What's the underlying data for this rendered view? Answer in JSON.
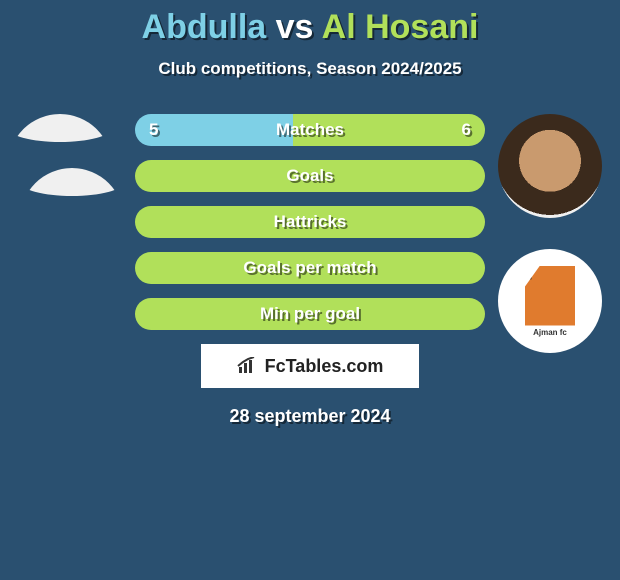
{
  "title": {
    "player1": "Abdulla",
    "vs": "vs",
    "player2": "Al Hosani"
  },
  "subtitle": "Club competitions, Season 2024/2025",
  "colors": {
    "player1": "#7ed0e6",
    "player2": "#b1e05a",
    "bg": "#2a5070"
  },
  "stats": [
    {
      "label": "Matches",
      "left_val": "5",
      "right_val": "6",
      "left_pct": 45,
      "right_pct": 55
    },
    {
      "label": "Goals",
      "left_val": "",
      "right_val": "",
      "left_pct": 0,
      "right_pct": 100
    },
    {
      "label": "Hattricks",
      "left_val": "",
      "right_val": "",
      "left_pct": 0,
      "right_pct": 100
    },
    {
      "label": "Goals per match",
      "left_val": "",
      "right_val": "",
      "left_pct": 0,
      "right_pct": 100
    },
    {
      "label": "Min per goal",
      "left_val": "",
      "right_val": "",
      "left_pct": 0,
      "right_pct": 100
    }
  ],
  "brand": "FcTables.com",
  "date": "28 september 2024",
  "club_text": "Ajman fc",
  "avatars": {
    "player1_top": "placeholder-ellipse",
    "player1_club": "placeholder-ellipse",
    "player2_top": "player-face",
    "player2_club": "club-logo"
  }
}
